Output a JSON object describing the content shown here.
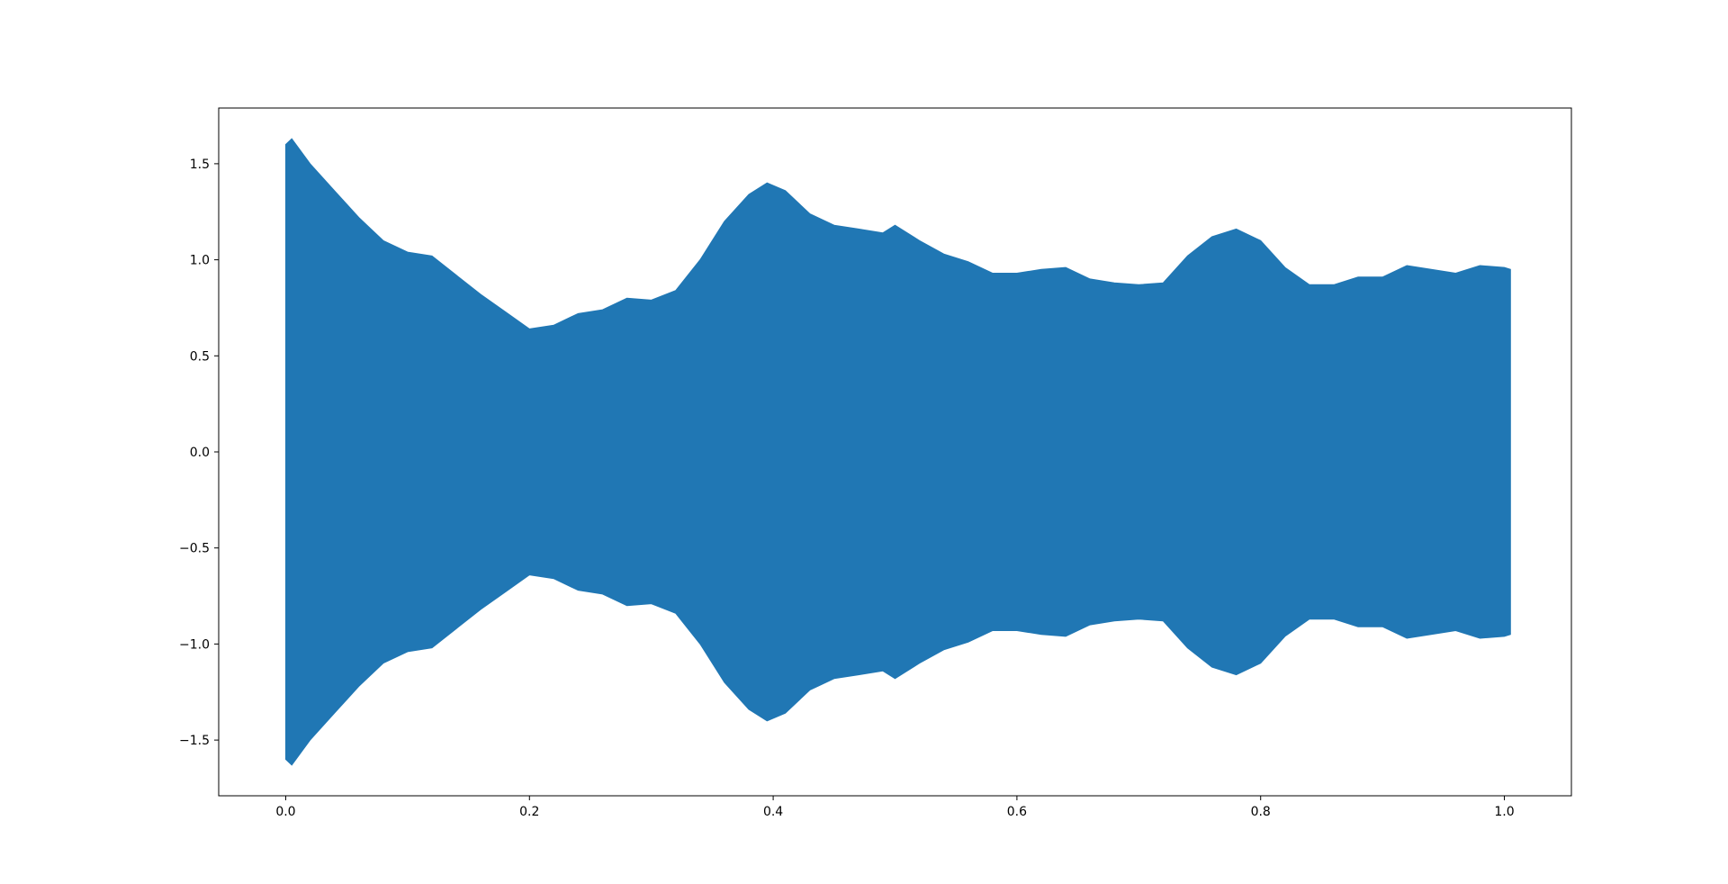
{
  "chart_data": {
    "type": "area",
    "title": "",
    "xlabel": "",
    "ylabel": "",
    "xlim": [
      -0.055,
      1.055
    ],
    "ylim": [
      -1.79,
      1.79
    ],
    "x_ticks": [
      0.0,
      0.2,
      0.4,
      0.6,
      0.8,
      1.0
    ],
    "x_tick_labels": [
      "0.0",
      "0.2",
      "0.4",
      "0.6",
      "0.8",
      "1.0"
    ],
    "y_ticks": [
      1.5,
      1.0,
      0.5,
      0.0,
      -0.5,
      -1.0,
      -1.5
    ],
    "y_tick_labels": [
      "1.5",
      "1.0",
      "0.5",
      "0.0",
      "−0.5",
      "−1.0",
      "−1.5"
    ],
    "grid": false,
    "legend": "none",
    "color": "#2077b4",
    "series": [
      {
        "name": "",
        "x": [
          0.0,
          0.005,
          0.02,
          0.04,
          0.06,
          0.08,
          0.1,
          0.12,
          0.14,
          0.16,
          0.18,
          0.2,
          0.22,
          0.24,
          0.26,
          0.28,
          0.3,
          0.32,
          0.34,
          0.36,
          0.38,
          0.395,
          0.41,
          0.43,
          0.45,
          0.47,
          0.49,
          0.5,
          0.52,
          0.54,
          0.56,
          0.58,
          0.6,
          0.62,
          0.64,
          0.66,
          0.68,
          0.7,
          0.72,
          0.74,
          0.76,
          0.78,
          0.8,
          0.82,
          0.84,
          0.86,
          0.88,
          0.9,
          0.92,
          0.94,
          0.96,
          0.98,
          1.0,
          1.005
        ],
        "upper": [
          1.6,
          1.63,
          1.5,
          1.36,
          1.22,
          1.1,
          1.04,
          1.02,
          0.92,
          0.82,
          0.73,
          0.64,
          0.66,
          0.72,
          0.74,
          0.8,
          0.79,
          0.84,
          1.0,
          1.2,
          1.34,
          1.4,
          1.36,
          1.24,
          1.18,
          1.16,
          1.14,
          1.18,
          1.1,
          1.03,
          0.99,
          0.93,
          0.93,
          0.95,
          0.96,
          0.9,
          0.88,
          0.87,
          0.88,
          1.02,
          1.12,
          1.16,
          1.1,
          0.96,
          0.87,
          0.87,
          0.91,
          0.91,
          0.97,
          0.95,
          0.93,
          0.97,
          0.96,
          0.95
        ],
        "lower": [
          -1.6,
          -1.63,
          -1.5,
          -1.36,
          -1.22,
          -1.1,
          -1.04,
          -1.02,
          -0.92,
          -0.82,
          -0.73,
          -0.64,
          -0.66,
          -0.72,
          -0.74,
          -0.8,
          -0.79,
          -0.84,
          -1.0,
          -1.2,
          -1.34,
          -1.4,
          -1.36,
          -1.24,
          -1.18,
          -1.16,
          -1.14,
          -1.18,
          -1.1,
          -1.03,
          -0.99,
          -0.93,
          -0.93,
          -0.95,
          -0.96,
          -0.9,
          -0.88,
          -0.87,
          -0.88,
          -1.02,
          -1.12,
          -1.16,
          -1.1,
          -0.96,
          -0.87,
          -0.87,
          -0.91,
          -0.91,
          -0.97,
          -0.95,
          -0.93,
          -0.97,
          -0.96,
          -0.95
        ]
      }
    ]
  }
}
